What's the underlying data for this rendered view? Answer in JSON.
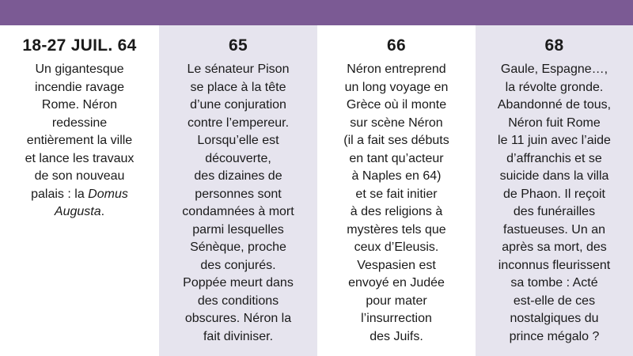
{
  "header_bar_color": "#7b5a94",
  "shade_color": "#e6e4ee",
  "columns": [
    {
      "date": "18-27 JUIL. 64",
      "lines": [
        "Un gigantesque",
        "incendie ravage",
        "Rome. Néron",
        "redessine",
        "entièrement la ville",
        "et lance les travaux",
        "de son nouveau",
        "palais : la Domus",
        "Augusta."
      ]
    },
    {
      "date": "65",
      "lines": [
        "Le sénateur Pison",
        "se place à la tête",
        "d’une conjuration",
        "contre l’empereur.",
        "Lorsqu’elle est",
        "découverte,",
        "des dizaines de",
        "personnes sont",
        "condamnées à mort",
        "parmi lesquelles",
        "Sénèque, proche",
        "des conjurés.",
        "Poppée meurt dans",
        "des conditions",
        "obscures. Néron la",
        "fait diviniser."
      ]
    },
    {
      "date": "66",
      "lines": [
        "Néron entreprend",
        "un long voyage en",
        "Grèce où il monte",
        "sur scène Néron",
        "(il a fait ses débuts",
        "en tant qu’acteur",
        "à Naples en 64)",
        "et se fait initier",
        "à des religions à",
        "mystères tels que",
        "ceux d’Eleusis.",
        "Vespasien est",
        "envoyé en Judée",
        "pour mater",
        "l’insurrection",
        "des Juifs."
      ]
    },
    {
      "date": "68",
      "lines": [
        "Gaule, Espagne…,",
        "la révolte gronde.",
        "Abandonné de tous,",
        "Néron fuit Rome",
        "le 11 juin avec l’aide",
        "d’affranchis et se",
        "suicide dans la villa",
        "de Phaon. Il reçoit",
        "des funérailles",
        "fastueuses. Un an",
        "après sa mort, des",
        "inconnus fleurissent",
        "sa tombe : Acté",
        "est-elle de ces",
        "nostalgiques du",
        "prince mégalo ?"
      ]
    }
  ]
}
